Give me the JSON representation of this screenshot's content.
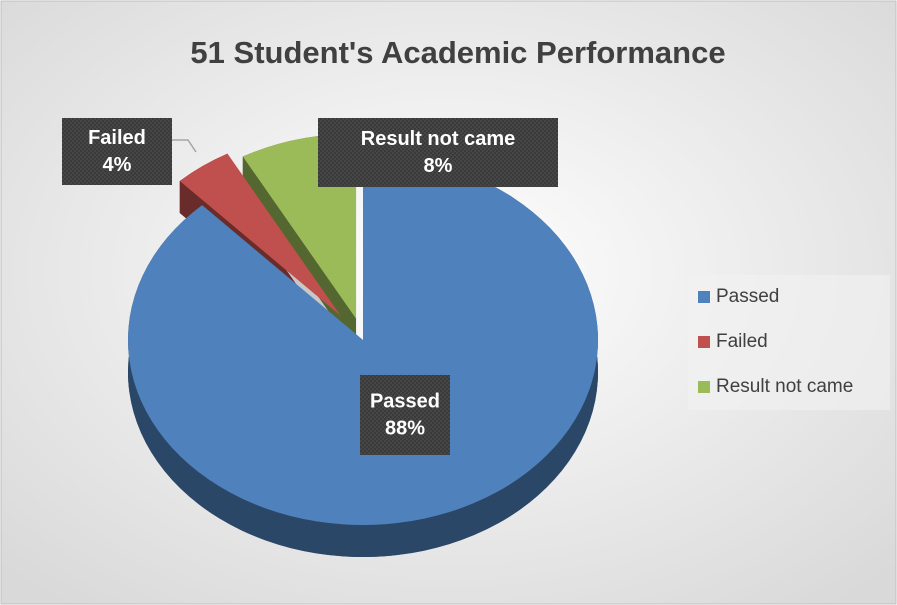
{
  "chart_data": {
    "type": "pie",
    "title": "51 Student's Academic Performance",
    "categories": [
      "Passed",
      "Failed",
      "Result not came"
    ],
    "values": [
      88,
      4,
      8
    ],
    "value_labels": [
      "88%",
      "4%",
      "8%"
    ],
    "colors": [
      "#4f81bd",
      "#c0504d",
      "#9bbb59"
    ],
    "legend": "right"
  }
}
